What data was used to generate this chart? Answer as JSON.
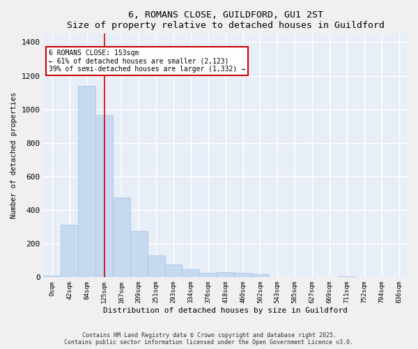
{
  "title": "6, ROMANS CLOSE, GUILDFORD, GU1 2ST",
  "subtitle": "Size of property relative to detached houses in Guildford",
  "xlabel": "Distribution of detached houses by size in Guildford",
  "ylabel": "Number of detached properties",
  "bar_color": "#c5d9f1",
  "bar_edge_color": "#aac4e0",
  "background_color": "#e8eef8",
  "figure_color": "#f0f0f0",
  "grid_color": "#ffffff",
  "categories": [
    "0sqm",
    "42sqm",
    "84sqm",
    "125sqm",
    "167sqm",
    "209sqm",
    "251sqm",
    "293sqm",
    "334sqm",
    "376sqm",
    "418sqm",
    "460sqm",
    "502sqm",
    "543sqm",
    "585sqm",
    "627sqm",
    "669sqm",
    "711sqm",
    "752sqm",
    "794sqm",
    "836sqm"
  ],
  "values": [
    8,
    315,
    1140,
    965,
    475,
    275,
    130,
    75,
    47,
    25,
    30,
    27,
    20,
    0,
    0,
    0,
    0,
    5,
    0,
    0,
    0
  ],
  "ylim": [
    0,
    1450
  ],
  "yticks": [
    0,
    200,
    400,
    600,
    800,
    1000,
    1200,
    1400
  ],
  "property_line_x": 3.5,
  "annotation_title": "6 ROMANS CLOSE: 153sqm",
  "annotation_line1": "← 61% of detached houses are smaller (2,123)",
  "annotation_line2": "39% of semi-detached houses are larger (1,332) →",
  "annotation_box_color": "#ffffff",
  "annotation_box_edge": "#cc0000",
  "vline_color": "#cc0000",
  "footer_line1": "Contains HM Land Registry data © Crown copyright and database right 2025.",
  "footer_line2": "Contains public sector information licensed under the Open Government Licence v3.0."
}
